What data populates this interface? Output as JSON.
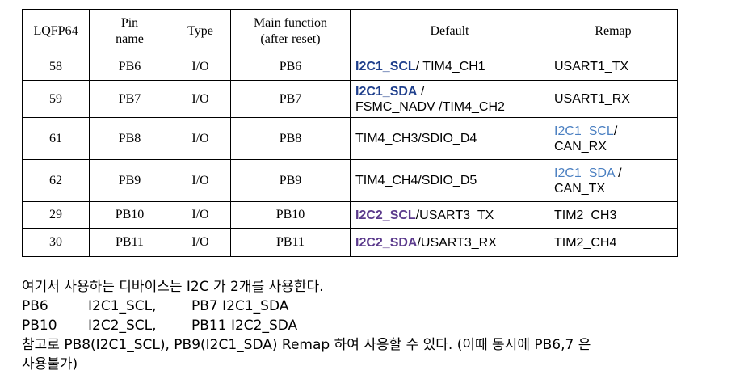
{
  "table": {
    "headers": {
      "lqfp": "LQFP64",
      "pin_name_1": "Pin",
      "pin_name_2": "name",
      "type": "Type",
      "main_1": "Main function",
      "main_2": "(after reset)",
      "default": "Default",
      "remap": "Remap"
    },
    "rows": [
      {
        "num": "58",
        "pin": "PB6",
        "type": "I/O",
        "main": "PB6",
        "default_hl": "I2C1_SCL",
        "default_rest": "/ TIM4_CH1",
        "default_line2": "",
        "remap_1": "USART1_TX",
        "remap_2": ""
      },
      {
        "num": "59",
        "pin": "PB7",
        "type": "I/O",
        "main": "PB7",
        "default_hl": "I2C1_SDA",
        "default_rest": " /",
        "default_line2": "FSMC_NADV /TIM4_CH2",
        "remap_1": "USART1_RX",
        "remap_2": ""
      },
      {
        "num": "61",
        "pin": "PB8",
        "type": "I/O",
        "main": "PB8",
        "default_plain": "TIM4_CH3/SDIO_D4",
        "remap_hl": "I2C1_SCL",
        "remap_rest": "/",
        "remap_2": "CAN_RX"
      },
      {
        "num": "62",
        "pin": "PB9",
        "type": "I/O",
        "main": "PB9",
        "default_plain": "TIM4_CH4/SDIO_D5",
        "remap_hl": "I2C1_SDA",
        "remap_rest": " /",
        "remap_2": "CAN_TX"
      },
      {
        "num": "29",
        "pin": "PB10",
        "type": "I/O",
        "main": "PB10",
        "default_hl": "I2C2_SCL",
        "default_rest": "/USART3_TX",
        "remap_1": "TIM2_CH3"
      },
      {
        "num": "30",
        "pin": "PB11",
        "type": "I/O",
        "main": "PB11",
        "default_hl": "I2C2_SDA",
        "default_rest": "/USART3_RX",
        "remap_1": "TIM2_CH4"
      }
    ]
  },
  "notes": {
    "line1": "여기서 사용하는 디바이스는 I2C 가 2개를 사용한다.",
    "pair1": {
      "a": "PB6",
      "b": "I2C1_SCL,",
      "c": "PB7  I2C1_SDA"
    },
    "pair2": {
      "a": "PB10",
      "b": "I2C2_SCL,",
      "c": "PB11 I2C2_SDA"
    },
    "line4": "참고로 PB8(I2C1_SCL), PB9(I2C1_SDA) Remap 하여 사용할 수 있다. (이때 동시에 PB6,7 은",
    "line5": "사용불가)"
  },
  "colors": {
    "i2c1_default": "#1f3f8c",
    "i2c2_default": "#5b3a8c",
    "remap_link": "#4a7fc1"
  }
}
